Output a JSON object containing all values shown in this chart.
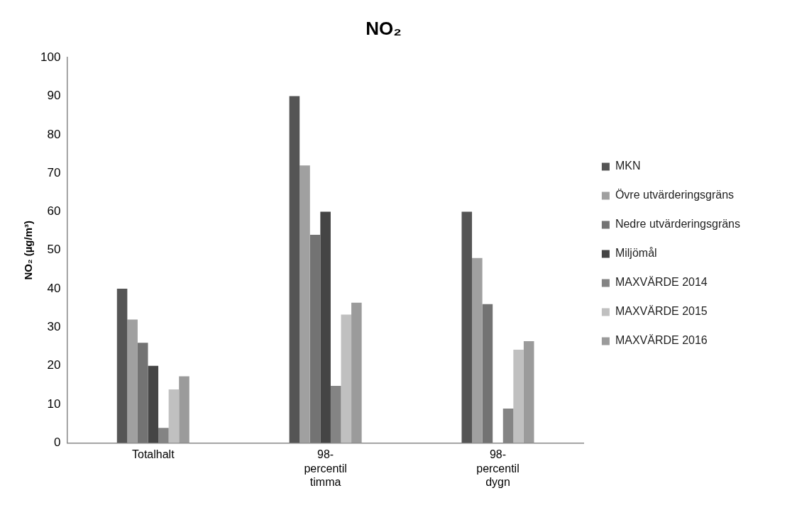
{
  "chart_data": {
    "type": "bar",
    "title": "NO₂",
    "ylabel": "NO₂ (µg/m³)",
    "categories": [
      "Totalhalt",
      "98-percentil timma",
      "98-percentil dygn"
    ],
    "series": [
      {
        "name": "MKN",
        "color": "#555555",
        "values": [
          40,
          90,
          60
        ]
      },
      {
        "name": "Övre utvärderingsgräns",
        "color": "#a0a0a0",
        "values": [
          32,
          72,
          48
        ]
      },
      {
        "name": "Nedre utvärderingsgräns",
        "color": "#737373",
        "values": [
          26,
          54,
          36
        ]
      },
      {
        "name": "Miljömål",
        "color": "#454545",
        "values": [
          20,
          60,
          null
        ]
      },
      {
        "name": "MAXVÄRDE 2014",
        "color": "#848484",
        "values": [
          3.9,
          14.8,
          8.9
        ]
      },
      {
        "name": "MAXVÄRDE 2015",
        "color": "#c0c0c0",
        "values": [
          13.9,
          33.3,
          24.2
        ]
      },
      {
        "name": "MAXVÄRDE 2016",
        "color": "#9b9b9b",
        "values": [
          17.3,
          36.4,
          26.4
        ]
      }
    ],
    "ylim": [
      0,
      100
    ],
    "yticks": [
      0,
      10,
      20,
      30,
      40,
      50,
      60,
      70,
      80,
      90,
      100
    ],
    "grid": false,
    "legend": "right"
  }
}
